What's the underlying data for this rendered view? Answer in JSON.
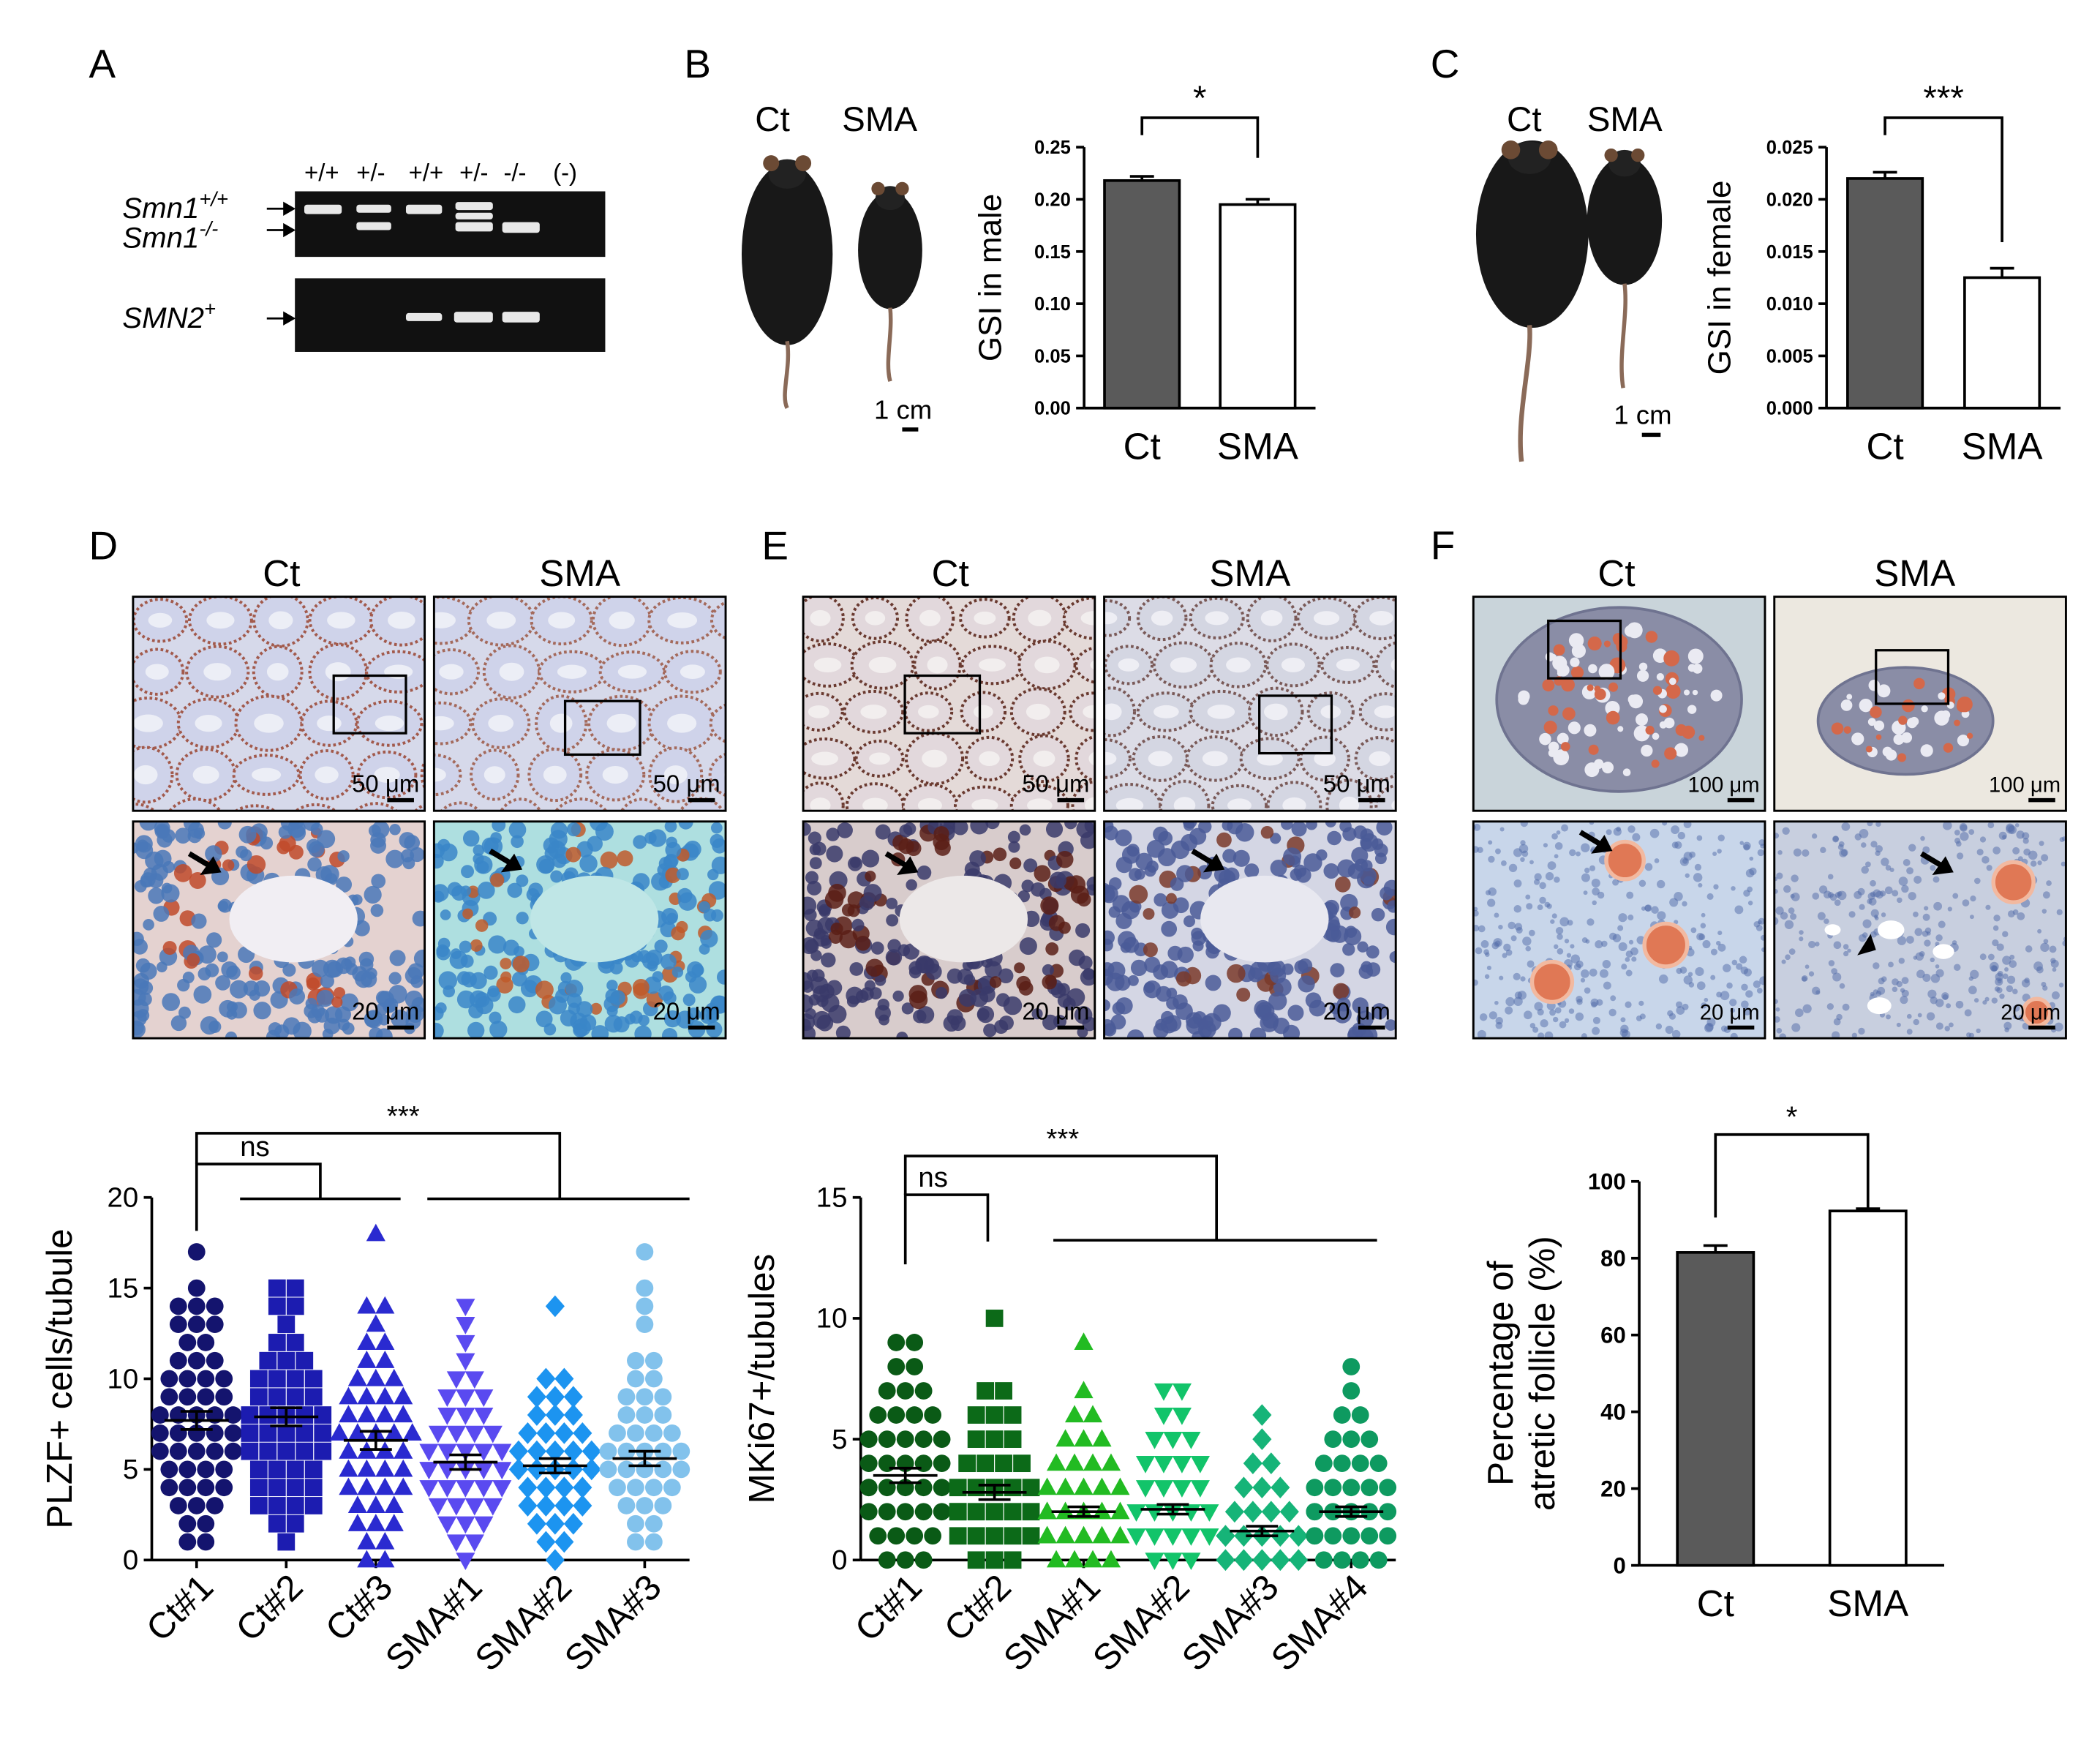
{
  "panels": {
    "A": {
      "letter": "A",
      "lane_labels": [
        "+/+",
        "+/-",
        "+/+",
        "+/-",
        "-/-",
        "(-)"
      ],
      "gene_top_a_base": "Smn1",
      "gene_top_a_sup": "+/+",
      "gene_top_b_base": "Smn1",
      "gene_top_b_sup": "-/-",
      "gene_bottom_base": "SMN2",
      "gene_bottom_sup": "+"
    },
    "B": {
      "letter": "B",
      "photo_label_ct": "Ct",
      "photo_label_sma": "SMA",
      "scale_label": "1 cm",
      "sig": "*"
    },
    "C": {
      "letter": "C",
      "photo_label_ct": "Ct",
      "photo_label_sma": "SMA",
      "scale_label": "1 cm",
      "sig": "***"
    },
    "D": {
      "letter": "D",
      "col_ct": "Ct",
      "col_sma": "SMA",
      "scale_low": "50 μm",
      "scale_high": "20 μm",
      "sig_ns": "ns",
      "sig_all": "***"
    },
    "E": {
      "letter": "E",
      "col_ct": "Ct",
      "col_sma": "SMA",
      "scale_low": "50 μm",
      "scale_high": "20 μm",
      "sig_ns": "ns",
      "sig_all": "***"
    },
    "F": {
      "letter": "F",
      "col_ct": "Ct",
      "col_sma": "SMA",
      "scale_low": "100 μm",
      "scale_high": "20 μm",
      "sig": "*"
    }
  },
  "chart_data": [
    {
      "id": "B",
      "type": "bar",
      "categories": [
        "Ct",
        "SMA"
      ],
      "values": [
        0.218,
        0.195
      ],
      "errors": [
        0.004,
        0.005
      ],
      "ylabel": "GSI in male",
      "ylim": [
        0,
        0.25
      ],
      "yticks": [
        "0.00",
        "0.05",
        "0.10",
        "0.15",
        "0.20",
        "0.25"
      ],
      "colors": [
        "#5a5a5a",
        "#ffffff"
      ],
      "significance": "*"
    },
    {
      "id": "C",
      "type": "bar",
      "categories": [
        "Ct",
        "SMA"
      ],
      "values": [
        0.022,
        0.0125
      ],
      "errors": [
        0.0006,
        0.0009
      ],
      "ylabel": "GSI in female",
      "ylim": [
        0,
        0.025
      ],
      "yticks": [
        "0.000",
        "0.005",
        "0.010",
        "0.015",
        "0.020",
        "0.025"
      ],
      "colors": [
        "#5a5a5a",
        "#ffffff"
      ],
      "significance": "***"
    },
    {
      "id": "D",
      "type": "scatter",
      "categories": [
        "Ct#1",
        "Ct#2",
        "Ct#3",
        "SMA#1",
        "SMA#2",
        "SMA#3"
      ],
      "ylabel": "PLZF+ cells/tubule",
      "ylim": [
        0,
        20
      ],
      "yticks": [
        "0",
        "5",
        "10",
        "15",
        "20"
      ],
      "marker": [
        "circle",
        "square",
        "triangle",
        "triangle-down",
        "diamond",
        "circle"
      ],
      "colors": [
        "#14146e",
        "#1c1cb0",
        "#2a2ad0",
        "#5a4af0",
        "#1c94f0",
        "#82c2ec"
      ],
      "means": [
        7.7,
        7.9,
        6.6,
        5.4,
        5.2,
        5.6
      ],
      "errors": [
        0.5,
        0.5,
        0.5,
        0.4,
        0.4,
        0.4
      ],
      "values": [
        [
          17,
          15,
          14,
          14,
          14,
          13,
          13,
          13,
          12,
          12,
          11,
          11,
          11,
          10,
          10,
          10,
          10,
          9,
          9,
          9,
          9,
          8,
          8,
          8,
          8,
          8,
          7,
          7,
          7,
          7,
          7,
          6,
          6,
          6,
          6,
          6,
          5,
          5,
          5,
          5,
          4,
          4,
          4,
          4,
          3,
          3,
          3,
          2,
          2,
          1,
          1
        ],
        [
          15,
          15,
          14,
          14,
          13,
          12,
          12,
          11,
          11,
          11,
          10,
          10,
          10,
          10,
          9,
          9,
          9,
          9,
          8,
          8,
          8,
          8,
          8,
          7,
          7,
          7,
          7,
          7,
          7,
          6,
          6,
          6,
          6,
          6,
          5,
          5,
          5,
          5,
          4,
          4,
          4,
          4,
          3,
          3,
          3,
          3,
          2,
          2,
          1
        ],
        [
          18,
          14,
          14,
          13,
          12,
          12,
          11,
          11,
          10,
          10,
          10,
          9,
          9,
          9,
          9,
          8,
          8,
          8,
          8,
          7,
          7,
          7,
          7,
          7,
          6,
          6,
          6,
          6,
          5,
          5,
          5,
          5,
          4,
          4,
          4,
          4,
          3,
          3,
          3,
          2,
          2,
          2,
          1,
          1,
          0,
          0
        ],
        [
          14,
          13,
          12,
          11,
          10,
          10,
          9,
          9,
          9,
          8,
          8,
          8,
          7,
          7,
          7,
          7,
          6,
          6,
          6,
          6,
          6,
          5,
          5,
          5,
          5,
          5,
          5,
          4,
          4,
          4,
          4,
          4,
          3,
          3,
          3,
          3,
          2,
          2,
          2,
          1,
          1,
          0
        ],
        [
          14,
          10,
          10,
          9,
          9,
          9,
          8,
          8,
          8,
          7,
          7,
          7,
          7,
          6,
          6,
          6,
          6,
          6,
          5,
          5,
          5,
          5,
          5,
          4,
          4,
          4,
          4,
          3,
          3,
          3,
          3,
          2,
          2,
          2,
          1,
          1,
          0
        ],
        [
          17,
          15,
          14,
          13,
          11,
          11,
          10,
          10,
          9,
          9,
          9,
          8,
          8,
          8,
          7,
          7,
          7,
          7,
          6,
          6,
          6,
          6,
          6,
          5,
          5,
          5,
          5,
          5,
          4,
          4,
          4,
          4,
          3,
          3,
          3,
          2,
          2,
          1,
          1
        ]
      ],
      "significance": {
        "ns": "ns",
        "all": "***"
      }
    },
    {
      "id": "E",
      "type": "scatter",
      "categories": [
        "Ct#1",
        "Ct#2",
        "SMA#1",
        "SMA#2",
        "SMA#3",
        "SMA#4"
      ],
      "ylabel": "MKi67+/tubules",
      "ylim": [
        0,
        15
      ],
      "yticks": [
        "0",
        "5",
        "10",
        "15"
      ],
      "marker": [
        "circle",
        "square",
        "triangle",
        "triangle-down",
        "diamond",
        "circle"
      ],
      "colors": [
        "#0a5a16",
        "#0c6a18",
        "#22bb22",
        "#12c46a",
        "#16b478",
        "#0e9a60"
      ],
      "means": [
        3.5,
        2.8,
        2.0,
        2.1,
        1.2,
        2.0
      ],
      "errors": [
        0.3,
        0.3,
        0.2,
        0.2,
        0.2,
        0.2
      ],
      "values": [
        [
          9,
          9,
          8,
          8,
          7,
          7,
          7,
          6,
          6,
          6,
          6,
          5,
          5,
          5,
          5,
          5,
          4,
          4,
          4,
          4,
          4,
          3,
          3,
          3,
          3,
          3,
          3,
          2,
          2,
          2,
          2,
          2,
          1,
          1,
          1,
          1,
          0,
          0,
          0
        ],
        [
          10,
          7,
          7,
          6,
          6,
          6,
          5,
          5,
          5,
          4,
          4,
          4,
          4,
          3,
          3,
          3,
          3,
          3,
          2,
          2,
          2,
          2,
          2,
          2,
          1,
          1,
          1,
          1,
          1,
          0,
          0,
          0
        ],
        [
          9,
          7,
          6,
          6,
          5,
          5,
          5,
          4,
          4,
          4,
          4,
          3,
          3,
          3,
          3,
          3,
          2,
          2,
          2,
          2,
          2,
          2,
          1,
          1,
          1,
          1,
          1,
          1,
          0,
          0,
          0,
          0
        ],
        [
          7,
          7,
          6,
          6,
          5,
          5,
          5,
          4,
          4,
          4,
          4,
          3,
          3,
          3,
          3,
          2,
          2,
          2,
          2,
          2,
          1,
          1,
          1,
          1,
          1,
          0,
          0,
          0
        ],
        [
          6,
          5,
          4,
          4,
          3,
          3,
          3,
          2,
          2,
          2,
          2,
          1,
          1,
          1,
          1,
          1,
          1,
          0,
          0,
          0,
          0,
          0
        ],
        [
          8,
          7,
          6,
          6,
          5,
          5,
          5,
          4,
          4,
          4,
          4,
          3,
          3,
          3,
          3,
          3,
          2,
          2,
          2,
          2,
          2,
          2,
          1,
          1,
          1,
          1,
          1,
          1,
          0,
          0,
          0,
          0
        ]
      ],
      "significance": {
        "ns": "ns",
        "all": "***"
      }
    },
    {
      "id": "F",
      "type": "bar",
      "categories": [
        "Ct",
        "SMA"
      ],
      "values": [
        81.5,
        92.3
      ],
      "errors": [
        1.8,
        0.6
      ],
      "ylabel": "Percentage of atretic follicle (%)",
      "ylabel_lines": [
        "Percentage of",
        "atretic follicle (%)"
      ],
      "ylim": [
        0,
        100
      ],
      "yticks": [
        "0",
        "20",
        "40",
        "60",
        "80",
        "100"
      ],
      "colors": [
        "#5a5a5a",
        "#ffffff"
      ],
      "significance": "*"
    }
  ]
}
